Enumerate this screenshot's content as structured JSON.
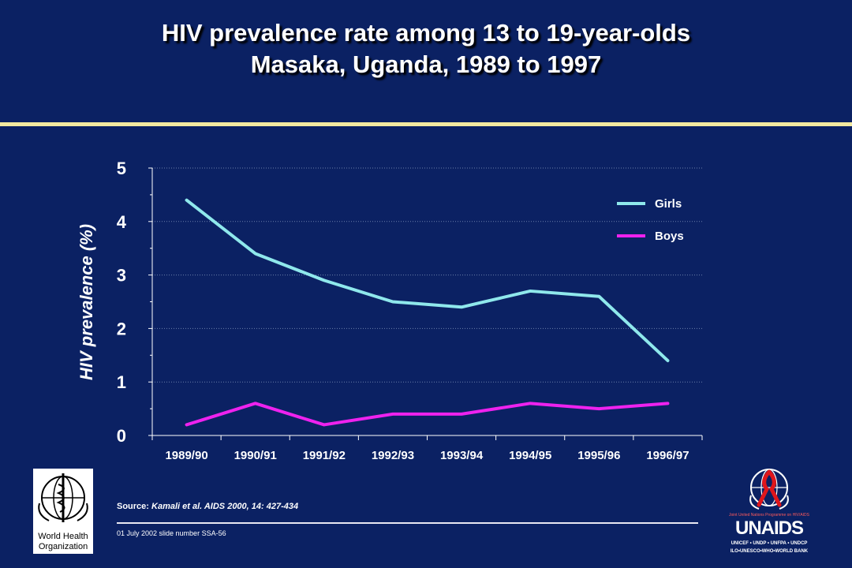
{
  "slide": {
    "title_line1": "HIV prevalence rate among 13 to 19-year-olds",
    "title_line2": "Masaka, Uganda, 1989 to 1997",
    "source_prefix": "Source: ",
    "source_citation": "Kamali et al. AIDS 2000, 14: 427-434",
    "footer": "01 July 2002 slide number SSA-56"
  },
  "logos": {
    "who_line1": "World Health",
    "who_line2": "Organization",
    "unaids_tagline": "Joint United Nations Programme on HIV/AIDS",
    "unaids_name": "UNAIDS",
    "unaids_sub1": "UNICEF • UNDP • UNFPA • UNDCP",
    "unaids_sub2": "ILO•UNESCO•WHO•WORLD BANK"
  },
  "colors": {
    "background": "#0b2163",
    "girls": "#8fe8ec",
    "boys": "#ee22ee",
    "accent_rule": "#f2e9a0"
  },
  "chart_data": {
    "type": "line",
    "title": "",
    "xlabel": "",
    "ylabel": "HIV prevalence (%)",
    "categories": [
      "1989/90",
      "1990/91",
      "1991/92",
      "1992/93",
      "1993/94",
      "1994/95",
      "1995/96",
      "1996/97"
    ],
    "ylim": [
      0,
      5
    ],
    "yticks": [
      0,
      1,
      2,
      3,
      4,
      5
    ],
    "grid": true,
    "legend_position": "top-right",
    "series": [
      {
        "name": "Girls",
        "values": [
          4.4,
          3.4,
          2.9,
          2.5,
          2.4,
          2.7,
          2.6,
          1.4
        ]
      },
      {
        "name": "Boys",
        "values": [
          0.2,
          0.6,
          0.2,
          0.4,
          0.4,
          0.6,
          0.5,
          0.6
        ]
      }
    ]
  }
}
